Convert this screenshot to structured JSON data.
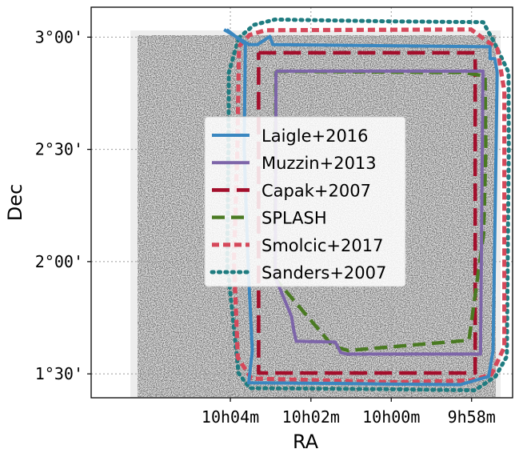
{
  "chart_data": {
    "type": "line",
    "title": "",
    "xlabel": "RA",
    "ylabel": "Dec",
    "x_unit": "RA hours (decreasing to the right)",
    "y_unit": "Dec degrees",
    "xlim": [
      10.1244,
      9.9497
    ],
    "ylim": [
      1.3935,
      3.1333
    ],
    "grid": true,
    "legend_position": "center",
    "background_field": "grayscale source density map",
    "x_ticks": [
      {
        "value": 10.0667,
        "label": "10h04m"
      },
      {
        "value": 10.0333,
        "label": "10h02m"
      },
      {
        "value": 10.0,
        "label": "10h00m"
      },
      {
        "value": 9.9667,
        "label": "9h58m"
      }
    ],
    "y_ticks": [
      {
        "value": 3.0,
        "label": "3°00'"
      },
      {
        "value": 2.5,
        "label": "2°30'"
      },
      {
        "value": 2.0,
        "label": "2°00'"
      },
      {
        "value": 1.5,
        "label": "1°30'"
      }
    ],
    "series": [
      {
        "name": "Laigle+2016",
        "color": "#3a87c0",
        "dash": "solid",
        "x": [
          10.0693,
          10.0589,
          10.0554,
          10.0503,
          10.0491,
          9.9591,
          9.959,
          9.9571,
          9.9561,
          9.9578,
          9.9596,
          9.9713,
          10.0005,
          10.0226,
          10.0591,
          10.0576,
          10.0594,
          10.061,
          10.0605,
          10.0682
        ],
        "y": [
          3.0333,
          2.9667,
          2.9667,
          3.0033,
          2.9667,
          2.9573,
          2.9042,
          2.9042,
          2.8436,
          1.6032,
          1.4883,
          1.4523,
          1.4543,
          1.4577,
          1.4606,
          1.6016,
          2.0007,
          2.5009,
          2.9694,
          3.0333
        ]
      },
      {
        "name": "Muzzin+2013",
        "color": "#7d65a9",
        "dash": "solid",
        "x": [
          10.0478,
          9.962,
          9.963,
          10.0184,
          10.0209,
          10.0232,
          10.0394,
          10.0406,
          10.0413,
          10.0481,
          10.0478
        ],
        "y": [
          2.8483,
          2.8483,
          1.5883,
          1.5883,
          1.5937,
          1.6417,
          1.6453,
          1.7034,
          1.7542,
          1.9296,
          2.8483
        ]
      },
      {
        "name": "Capak+2007",
        "color": "#a30f2c",
        "dash": "long-dash",
        "x": [
          10.055,
          9.9652,
          9.9652,
          10.055,
          10.055
        ],
        "y": [
          2.9305,
          2.9305,
          1.5038,
          1.5038,
          2.9305
        ]
      },
      {
        "name": "SPLASH",
        "color": "#4a7a22",
        "dash": "dash",
        "x": [
          10.0479,
          9.97,
          9.9611,
          9.9608,
          9.9617,
          9.9678,
          10.0179,
          10.0243,
          10.0482,
          10.0479
        ],
        "y": [
          2.8476,
          2.8425,
          2.8262,
          2.5004,
          2.1249,
          1.65,
          1.6039,
          1.6244,
          1.9253,
          2.8476
        ]
      },
      {
        "name": "Smolcic+2017",
        "color": "#d5485a",
        "dash": "short-dash",
        "x": [
          10.0631,
          10.0588,
          10.0522,
          9.9669,
          9.956,
          9.9531,
          9.9531,
          9.9585,
          9.9673,
          10.0005,
          10.058,
          10.0636,
          10.0652,
          10.0638,
          10.0631
        ],
        "y": [
          2.9595,
          3.0095,
          3.0305,
          3.0341,
          2.9476,
          2.7582,
          1.62,
          1.4974,
          1.4702,
          1.4629,
          1.4795,
          1.5723,
          2.0006,
          2.4984,
          2.9595
        ]
      },
      {
        "name": "Sanders+2007",
        "color": "#1f7c80",
        "dash": "dotted",
        "x": [
          10.0632,
          10.0568,
          10.0482,
          10.0007,
          9.9619,
          9.9575,
          9.9514,
          9.9513,
          9.9521,
          9.9568,
          9.9653,
          10.0018,
          10.0587,
          10.0633,
          10.068,
          10.0675,
          10.0673,
          10.0632
        ],
        "y": [
          2.997,
          3.0549,
          3.0785,
          3.0703,
          3.0667,
          2.9802,
          2.8433,
          2.5036,
          1.5779,
          1.4883,
          1.4269,
          1.4318,
          1.4363,
          1.5034,
          1.996,
          2.5009,
          2.8436,
          2.997
        ]
      }
    ]
  }
}
